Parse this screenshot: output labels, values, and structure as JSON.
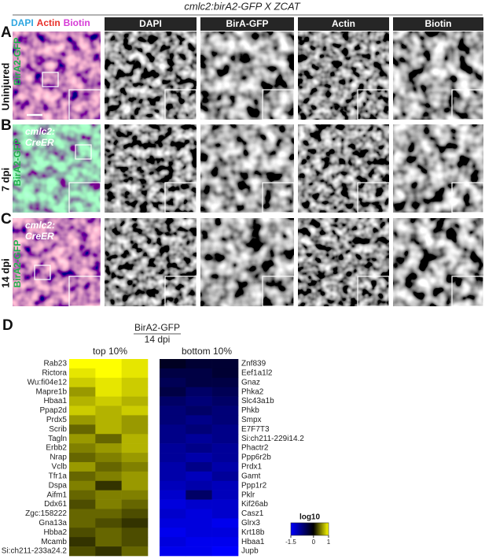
{
  "figure": {
    "title": "cmlc2:birA2-GFP X ZCAT",
    "merge_header": [
      {
        "text": "DAPI",
        "color": "#2ea6e0"
      },
      {
        "text": "Actin",
        "color": "#e8302a"
      },
      {
        "text": "Biotin",
        "color": "#d63bd6"
      }
    ],
    "column_headers": [
      "DAPI",
      "BirA-GFP",
      "Actin",
      "Biotin"
    ],
    "panel_labels": [
      "A",
      "B",
      "C"
    ],
    "row_labels": [
      "Uninjured",
      "7 dpi",
      "14 dpi"
    ],
    "genotype_label": "BirA2-GFP",
    "driver_label": [
      "cmlc2:",
      "CreER"
    ]
  },
  "chart_data": {
    "type": "heatmap",
    "panel_label": "D",
    "title": "BirA2-GFP",
    "subtitle": "14 dpi",
    "panels": [
      {
        "name": "top 10%",
        "rows": [
          "Rab23",
          "Rictora",
          "Wu:fi04e12",
          "Mapre1b",
          "Hbaa1",
          "Ppap2d",
          "Prdx5",
          "Scrib",
          "Tagln",
          "Erbb2",
          "Nrap",
          "Vclb",
          "Tfr1a",
          "Dspa",
          "Aifm1",
          "Ddx61",
          "Zgc:158222",
          "Gna13a",
          "Hbba2",
          "Mcamb",
          "Si:ch211-233a24.2"
        ],
        "values": [
          [
            1,
            1,
            0.9
          ],
          [
            0.9,
            1,
            0.9
          ],
          [
            0.8,
            0.9,
            0.8
          ],
          [
            0.6,
            0.9,
            0.8
          ],
          [
            0.7,
            0.8,
            0.7
          ],
          [
            0.8,
            0.7,
            0.8
          ],
          [
            0.6,
            0.7,
            0.6
          ],
          [
            0.4,
            0.7,
            0.6
          ],
          [
            0.6,
            0.4,
            0.7
          ],
          [
            0.5,
            0.6,
            0.7
          ],
          [
            0.4,
            0.5,
            0.6
          ],
          [
            0.6,
            0.4,
            0.5
          ],
          [
            0.4,
            0.5,
            0.6
          ],
          [
            0.5,
            0.2,
            0.6
          ],
          [
            0.4,
            0.5,
            0.5
          ],
          [
            0.3,
            0.5,
            0.4
          ],
          [
            0.4,
            0.4,
            0.3
          ],
          [
            0.4,
            0.3,
            0.2
          ],
          [
            0.3,
            0.4,
            0.3
          ],
          [
            0.2,
            0.4,
            0.3
          ],
          [
            0.3,
            0.2,
            0.4
          ]
        ]
      },
      {
        "name": "bottom 10%",
        "rows": [
          "Znf839",
          "Eef1a1l2",
          "Gnaz",
          "Phka2",
          "Slc43a1b",
          "Phkb",
          "Smpx",
          "E7F7T3",
          "Si:ch211-229i14.2",
          "Phactr2",
          "Ppp6r2b",
          "Prdx1",
          "Gamt",
          "Ppp1r2",
          "Pklr",
          "Kif26ab",
          "Casz1",
          "Glrx3",
          "Krt18b",
          "Hbaa1",
          "Jupb"
        ],
        "values": [
          [
            -0.2,
            -0.3,
            -0.3
          ],
          [
            -0.4,
            -0.4,
            -0.3
          ],
          [
            -0.5,
            -0.4,
            -0.4
          ],
          [
            -0.4,
            -0.6,
            -0.5
          ],
          [
            -0.6,
            -0.7,
            -0.6
          ],
          [
            -0.7,
            -0.6,
            -0.7
          ],
          [
            -0.7,
            -0.8,
            -0.7
          ],
          [
            -0.8,
            -0.7,
            -0.8
          ],
          [
            -0.8,
            -0.9,
            -0.8
          ],
          [
            -0.9,
            -0.8,
            -0.9
          ],
          [
            -0.9,
            -1,
            -0.9
          ],
          [
            -1,
            -0.8,
            -1
          ],
          [
            -1,
            -1.1,
            -0.9
          ],
          [
            -1.1,
            -1,
            -1.1
          ],
          [
            -1.2,
            -0.6,
            -1.1
          ],
          [
            -1.3,
            -1.2,
            -1.2
          ],
          [
            -1.2,
            -1.3,
            -1.2
          ],
          [
            -1.3,
            -1.3,
            -1.4
          ],
          [
            -1.4,
            -1.3,
            -1.3
          ],
          [
            -1.3,
            -1.4,
            -1.4
          ],
          [
            -1.4,
            -1.4,
            -1.5
          ]
        ]
      }
    ],
    "colorbar": {
      "title": "log10",
      "clim": [
        -1.5,
        1
      ],
      "ticks": [
        -1.5,
        0,
        1
      ],
      "color_stops": [
        {
          "value": -1.5,
          "color": "#0000ff"
        },
        {
          "value": 0,
          "color": "#000000"
        },
        {
          "value": 1,
          "color": "#ffff00"
        }
      ]
    }
  }
}
